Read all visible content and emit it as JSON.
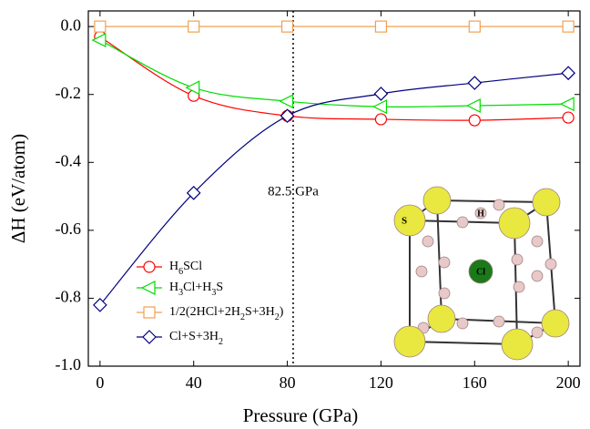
{
  "chart_data": {
    "type": "line",
    "x_label": "Pressure (GPa)",
    "y_label": "ΔH (eV/atom)",
    "x": [
      0,
      40,
      80,
      120,
      160,
      200
    ],
    "series": [
      {
        "name": "H6SCl",
        "color": "#ff0000",
        "marker": "circle",
        "values": [
          -0.03,
          -0.204,
          -0.263,
          -0.273,
          -0.276,
          -0.268
        ]
      },
      {
        "name": "H3Cl+H3S",
        "color": "#00dd00",
        "marker": "triangle-left",
        "values": [
          -0.04,
          -0.18,
          -0.22,
          -0.236,
          -0.233,
          -0.228
        ]
      },
      {
        "name": "1/2(2HCl+2H2S+3H2)",
        "color": "#f0a050",
        "marker": "square",
        "values": [
          0,
          0,
          0,
          0,
          0,
          0
        ]
      },
      {
        "name": "Cl+S+3H2",
        "color": "#000080",
        "marker": "diamond",
        "values": [
          -0.82,
          -0.49,
          -0.263,
          -0.198,
          -0.166,
          -0.137
        ]
      }
    ],
    "xlim": [
      -5,
      205
    ],
    "ylim": [
      -1.0,
      0.046
    ],
    "xticks": [
      0,
      40,
      80,
      120,
      160,
      200
    ],
    "yticks": [
      {
        "value": 0,
        "label": "0.0"
      },
      {
        "value": -0.2,
        "label": "-0.2"
      },
      {
        "value": -0.4,
        "label": "-0.4"
      },
      {
        "value": -0.6,
        "label": "-0.6"
      },
      {
        "value": -0.8,
        "label": "-0.8"
      },
      {
        "value": -1.0,
        "label": "-1.0"
      }
    ],
    "vline": {
      "x": 82.5,
      "label": "82.5 GPa",
      "color": "#ff0000"
    },
    "inset_labels": {
      "s": "S",
      "h": "H",
      "cl": "Cl"
    }
  }
}
